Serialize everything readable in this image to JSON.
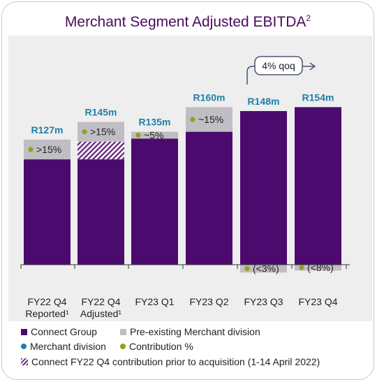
{
  "title": "Merchant Segment Adjusted EBITDA",
  "title_sup": "2",
  "colors": {
    "connect": "#4b0a6e",
    "preexisting": "#c0bec4",
    "merchant_label": "#1f7fa8",
    "contribution_dot": "#8ea31e",
    "plot_bg": "#eeeeee",
    "title": "#4b0a5e"
  },
  "annotation": {
    "text": "4% qoq"
  },
  "legend": {
    "connect": "Connect Group",
    "preexisting": "Pre-existing Merchant division",
    "merchant": "Merchant division",
    "contribution": "Contribution %",
    "hatch": "Connect FY22 Q4 contribution prior to acquisition (1-14 April 2022)"
  },
  "chart_data": {
    "type": "bar",
    "stacked": true,
    "categories": [
      [
        "FY22 Q4",
        "Reported¹"
      ],
      [
        "FY22 Q4",
        "Adjusted¹"
      ],
      [
        "FY23 Q1",
        ""
      ],
      [
        "FY23 Q2",
        ""
      ],
      [
        "FY23 Q3",
        ""
      ],
      [
        "FY23 Q4",
        ""
      ]
    ],
    "totals": [
      "R127m",
      "R145m",
      "R135m",
      "R160m",
      "R148m",
      "R154m"
    ],
    "total_values": [
      127,
      145,
      135,
      160,
      148,
      154
    ],
    "connect_values": [
      107,
      107,
      128,
      135,
      156,
      160
    ],
    "hatched_values": [
      0,
      18,
      0,
      0,
      0,
      0
    ],
    "preexisting_values": [
      20,
      20,
      7,
      25,
      -8,
      -6
    ],
    "contribution_labels": [
      ">15%",
      ">15%",
      "~5%",
      "~15%",
      "(<3%)",
      "(<8%)"
    ],
    "ylim": [
      -20,
      190
    ],
    "legend_position": "bottom"
  }
}
